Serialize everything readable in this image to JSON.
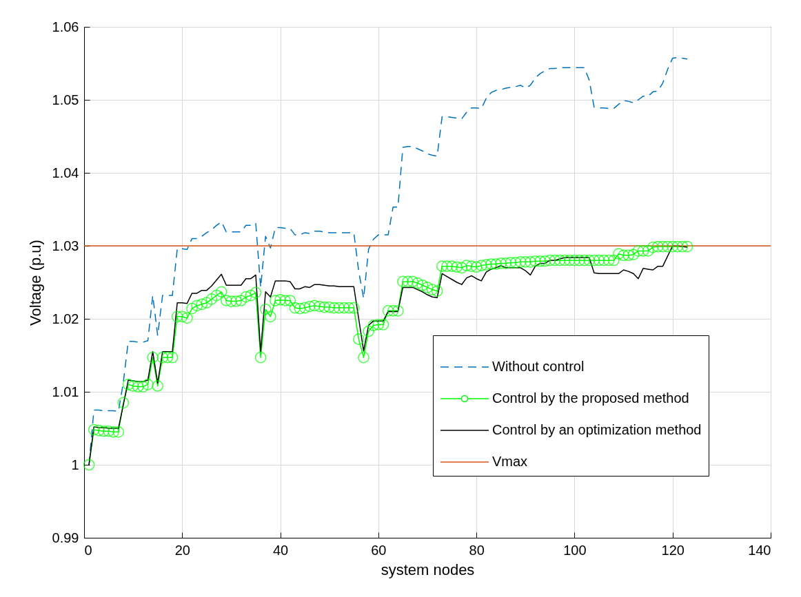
{
  "chart_data": {
    "type": "line",
    "xlabel": "system nodes",
    "ylabel": "Voltage (p.u)",
    "xlim": [
      0,
      140
    ],
    "xticks": [
      0,
      20,
      40,
      60,
      80,
      100,
      120,
      140
    ],
    "ylim": [
      0.99,
      1.06
    ],
    "yticks": [
      0.99,
      1,
      1.01,
      1.02,
      1.03,
      1.04,
      1.05,
      1.06
    ],
    "grid": true,
    "legend": "bottom right",
    "x": [
      1,
      2,
      3,
      4,
      5,
      6,
      7,
      8,
      9,
      10,
      11,
      12,
      13,
      14,
      15,
      16,
      17,
      18,
      19,
      20,
      21,
      22,
      23,
      24,
      25,
      26,
      27,
      28,
      29,
      30,
      31,
      32,
      33,
      34,
      35,
      36,
      37,
      38,
      39,
      40,
      41,
      42,
      43,
      44,
      45,
      46,
      47,
      48,
      49,
      50,
      51,
      52,
      53,
      54,
      55,
      56,
      57,
      58,
      59,
      60,
      61,
      62,
      63,
      64,
      65,
      66,
      67,
      68,
      69,
      70,
      71,
      72,
      73,
      74,
      75,
      76,
      77,
      78,
      79,
      80,
      81,
      82,
      83,
      84,
      85,
      86,
      87,
      88,
      89,
      90,
      91,
      92,
      93,
      94,
      95,
      96,
      97,
      98,
      99,
      100,
      101,
      102,
      103,
      104,
      105,
      106,
      107,
      108,
      109,
      110,
      111,
      112,
      113,
      114,
      115,
      116,
      117,
      118,
      119,
      120,
      121,
      122,
      123
    ],
    "series": [
      {
        "name": "Without control",
        "color": "#0072bd",
        "line_style": "dashed",
        "marker": "none",
        "values": [
          1.0,
          1.0075,
          1.0075,
          1.0074,
          1.0074,
          1.0074,
          1.0073,
          1.0113,
          1.0169,
          1.0169,
          1.0168,
          1.0168,
          1.017,
          1.0232,
          1.0177,
          1.0232,
          1.0232,
          1.0232,
          1.0296,
          1.0296,
          1.0295,
          1.031,
          1.031,
          1.0313,
          1.0318,
          1.0322,
          1.0328,
          1.0333,
          1.0319,
          1.0319,
          1.0319,
          1.0319,
          1.0328,
          1.0328,
          1.0331,
          1.0243,
          1.0313,
          1.0297,
          1.0325,
          1.0325,
          1.0324,
          1.0324,
          1.0315,
          1.0315,
          1.0318,
          1.0317,
          1.032,
          1.032,
          1.0319,
          1.0318,
          1.0318,
          1.0318,
          1.0318,
          1.0318,
          1.0318,
          1.0265,
          1.0228,
          1.0295,
          1.0309,
          1.0315,
          1.0315,
          1.0315,
          1.0353,
          1.0353,
          1.0435,
          1.0436,
          1.0436,
          1.0433,
          1.043,
          1.0426,
          1.0424,
          1.0423,
          1.0477,
          1.0477,
          1.0476,
          1.0475,
          1.0474,
          1.0483,
          1.0489,
          1.0489,
          1.0488,
          1.0502,
          1.051,
          1.0513,
          1.0514,
          1.0516,
          1.0517,
          1.0518,
          1.052,
          1.0516,
          1.052,
          1.053,
          1.0536,
          1.054,
          1.0543,
          1.0543,
          1.0544,
          1.0544,
          1.0544,
          1.0544,
          1.0544,
          1.0544,
          1.0527,
          1.049,
          1.0489,
          1.0489,
          1.0488,
          1.0488,
          1.0494,
          1.0499,
          1.0498,
          1.0496,
          1.05,
          1.0505,
          1.0505,
          1.0511,
          1.0512,
          1.0523,
          1.0542,
          1.0557,
          1.0558,
          1.0557,
          1.0556
        ]
      },
      {
        "name": "Control by the proposed method",
        "color": "#00ff00",
        "line_style": "solid",
        "marker": "circle",
        "values": [
          1.0,
          1.0048,
          1.0047,
          1.0046,
          1.0046,
          1.0045,
          1.0045,
          1.0085,
          1.011,
          1.0108,
          1.0107,
          1.0107,
          1.011,
          1.0147,
          1.0108,
          1.0147,
          1.0147,
          1.0147,
          1.0203,
          1.0203,
          1.0201,
          1.0214,
          1.0218,
          1.022,
          1.0222,
          1.0227,
          1.0232,
          1.0237,
          1.0225,
          1.0224,
          1.0224,
          1.0225,
          1.023,
          1.0232,
          1.0236,
          1.0147,
          1.0213,
          1.0203,
          1.0225,
          1.0226,
          1.0225,
          1.0225,
          1.0215,
          1.0214,
          1.0215,
          1.0217,
          1.0218,
          1.0217,
          1.0216,
          1.0216,
          1.0215,
          1.0215,
          1.0215,
          1.0215,
          1.0215,
          1.0172,
          1.0147,
          1.0183,
          1.0191,
          1.0192,
          1.0192,
          1.0211,
          1.0211,
          1.0211,
          1.0251,
          1.0251,
          1.0251,
          1.0249,
          1.0246,
          1.0243,
          1.024,
          1.0238,
          1.0272,
          1.0272,
          1.0272,
          1.0271,
          1.027,
          1.0273,
          1.0272,
          1.0271,
          1.0273,
          1.0274,
          1.0275,
          1.0275,
          1.0276,
          1.0276,
          1.0277,
          1.0277,
          1.0278,
          1.0278,
          1.0278,
          1.0279,
          1.0279,
          1.0279,
          1.028,
          1.028,
          1.028,
          1.028,
          1.028,
          1.028,
          1.028,
          1.028,
          1.028,
          1.028,
          1.028,
          1.028,
          1.028,
          1.028,
          1.0289,
          1.0287,
          1.0287,
          1.0288,
          1.0293,
          1.0293,
          1.0293,
          1.0298,
          1.0299,
          1.0299,
          1.0299,
          1.0299,
          1.0299,
          1.0299,
          1.0299
        ]
      },
      {
        "name": "Control by an optimization method",
        "color": "#000000",
        "line_style": "solid",
        "marker": "none",
        "values": [
          1.0,
          1.0052,
          1.0051,
          1.0051,
          1.005,
          1.005,
          1.005,
          1.0082,
          1.0116,
          1.0115,
          1.0114,
          1.0114,
          1.0116,
          1.0155,
          1.0112,
          1.0155,
          1.0155,
          1.0155,
          1.0222,
          1.0222,
          1.0221,
          1.0235,
          1.0235,
          1.0239,
          1.0239,
          1.0245,
          1.0253,
          1.0261,
          1.0246,
          1.0246,
          1.0246,
          1.0246,
          1.0255,
          1.0255,
          1.026,
          1.0155,
          1.0237,
          1.023,
          1.0252,
          1.0252,
          1.0252,
          1.0251,
          1.0241,
          1.0241,
          1.0244,
          1.0243,
          1.0247,
          1.0247,
          1.0246,
          1.0245,
          1.0245,
          1.0244,
          1.0244,
          1.0244,
          1.0244,
          1.02,
          1.0156,
          1.0191,
          1.0197,
          1.0197,
          1.0197,
          1.021,
          1.021,
          1.021,
          1.0243,
          1.0243,
          1.0243,
          1.024,
          1.0237,
          1.0233,
          1.023,
          1.0229,
          1.0262,
          1.0258,
          1.0254,
          1.025,
          1.0247,
          1.0256,
          1.0259,
          1.0255,
          1.0252,
          1.0264,
          1.0268,
          1.027,
          1.0273,
          1.027,
          1.027,
          1.027,
          1.027,
          1.0266,
          1.026,
          1.0272,
          1.0276,
          1.0276,
          1.028,
          1.028,
          1.0282,
          1.0284,
          1.0284,
          1.0284,
          1.0284,
          1.0284,
          1.0284,
          1.0263,
          1.0262,
          1.0262,
          1.0262,
          1.0262,
          1.0262,
          1.0267,
          1.0265,
          1.0262,
          1.0255,
          1.0269,
          1.0268,
          1.0267,
          1.0272,
          1.0272,
          1.0286,
          1.03,
          1.03,
          1.0299,
          1.0298
        ]
      },
      {
        "name": "Vmax",
        "color": "#d95319",
        "line_style": "solid",
        "marker": "none",
        "x": [
          0,
          140
        ],
        "values": [
          1.03,
          1.03
        ]
      }
    ]
  }
}
